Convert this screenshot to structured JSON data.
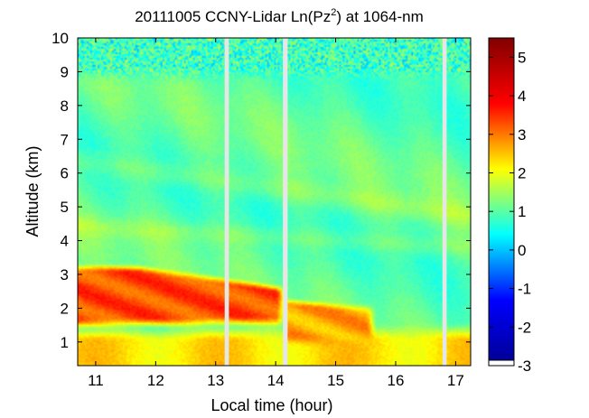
{
  "chart_data": {
    "type": "heatmap",
    "title": "20111005 CCNY-Lidar Ln(Pz²) at 1064-nm",
    "title_parts": {
      "before": "20111005 CCNY-Lidar Ln(Pz",
      "superscript": "2",
      "after": ") at 1064-nm"
    },
    "xlabel": "Local time (hour)",
    "ylabel": "Altitude (km)",
    "xlim": [
      10.7,
      17.25
    ],
    "ylim": [
      0.3,
      10.0
    ],
    "x_ticks": [
      11,
      12,
      13,
      14,
      15,
      16,
      17
    ],
    "y_ticks": [
      1,
      2,
      3,
      4,
      5,
      6,
      7,
      8,
      9,
      10
    ],
    "colorbar": {
      "range": [
        -3.0,
        5.5
      ],
      "ticks": [
        -3,
        -2,
        -1,
        0,
        1,
        2,
        3,
        4,
        5
      ],
      "tick_labels": [
        "-3",
        "-2",
        "-1",
        "0",
        "1",
        "2",
        "3",
        "4",
        "5"
      ],
      "colormap": "jet",
      "colormap_stops": [
        "#00008f",
        "#0000ff",
        "#00ffff",
        "#ffff00",
        "#ff0000",
        "#800000"
      ],
      "missing_value_color": "#ffffff"
    },
    "data_gaps_hours": [
      [
        13.15,
        13.22
      ],
      [
        14.12,
        14.2
      ],
      [
        16.78,
        16.85
      ]
    ],
    "gap_color": "#e6e6e6",
    "background_value": 1.0,
    "features": [
      {
        "name": "aerosol layer",
        "time_range": [
          10.7,
          14.1
        ],
        "altitude_top_km": 3.2,
        "altitude_bottom_km": 1.5,
        "value": 3.3
      },
      {
        "name": "aerosol layer",
        "time_range": [
          14.2,
          15.6
        ],
        "altitude_top_km": 2.2,
        "altitude_bottom_km": 1.0,
        "value": 2.7
      },
      {
        "name": "near-surface layer",
        "time_range": [
          10.7,
          17.25
        ],
        "altitude_top_km": 1.6,
        "altitude_bottom_km": 0.3,
        "value": 2.3
      },
      {
        "name": "upper noise region",
        "time_range": [
          10.7,
          17.25
        ],
        "altitude_top_km": 10.0,
        "altitude_bottom_km": 8.6,
        "value": 0.8
      }
    ]
  }
}
